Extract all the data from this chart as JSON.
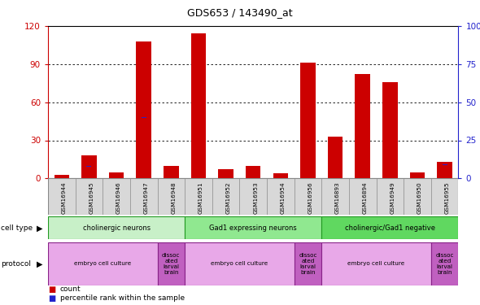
{
  "title": "GDS653 / 143490_at",
  "samples": [
    "GSM16944",
    "GSM16945",
    "GSM16946",
    "GSM16947",
    "GSM16948",
    "GSM16951",
    "GSM16952",
    "GSM16953",
    "GSM16954",
    "GSM16956",
    "GSM16893",
    "GSM16894",
    "GSM16949",
    "GSM16950",
    "GSM16955"
  ],
  "counts": [
    3,
    18,
    5,
    108,
    10,
    114,
    7,
    10,
    4,
    91,
    33,
    82,
    76,
    5,
    13
  ],
  "percentiles": [
    3,
    8,
    4,
    40,
    6,
    43,
    5,
    4,
    3,
    38,
    11,
    38,
    38,
    3,
    9
  ],
  "cell_type_groups": [
    {
      "label": "cholinergic neurons",
      "start": 0,
      "end": 5,
      "color": "#c8f0c8"
    },
    {
      "label": "Gad1 expressing neurons",
      "start": 5,
      "end": 10,
      "color": "#90e890"
    },
    {
      "label": "cholinergic/Gad1 negative",
      "start": 10,
      "end": 15,
      "color": "#60d860"
    }
  ],
  "protocol_groups": [
    {
      "label": "embryo cell culture",
      "start": 0,
      "end": 4,
      "color": "#e8a8e8"
    },
    {
      "label": "dissoc\nated\nlarval\nbrain",
      "start": 4,
      "end": 5,
      "color": "#c060c0"
    },
    {
      "label": "embryo cell culture",
      "start": 5,
      "end": 9,
      "color": "#e8a8e8"
    },
    {
      "label": "dissoc\nated\nlarval\nbrain",
      "start": 9,
      "end": 10,
      "color": "#c060c0"
    },
    {
      "label": "embryo cell culture",
      "start": 10,
      "end": 14,
      "color": "#e8a8e8"
    },
    {
      "label": "dissoc\nated\nlarval\nbrain",
      "start": 14,
      "end": 15,
      "color": "#c060c0"
    }
  ],
  "ylim_left": [
    0,
    120
  ],
  "ylim_right": [
    0,
    100
  ],
  "yticks_left": [
    0,
    30,
    60,
    90,
    120
  ],
  "yticks_right": [
    0,
    25,
    50,
    75,
    100
  ],
  "bar_color_red": "#cc0000",
  "bar_color_blue": "#2222cc",
  "bg_color": "#ffffff",
  "grid_color": "#000000",
  "tick_label_color_left": "#cc0000",
  "tick_label_color_right": "#2222cc",
  "sample_box_color": "#d8d8d8",
  "sample_box_edge": "#888888"
}
